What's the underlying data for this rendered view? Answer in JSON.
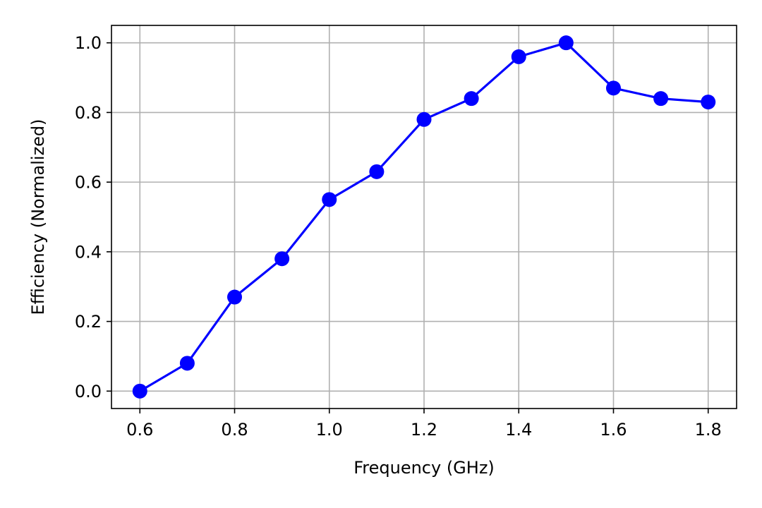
{
  "chart_data": {
    "type": "line",
    "title": "",
    "xlabel": "Frequency (GHz)",
    "ylabel": "Efficiency (Normalized)",
    "x": [
      0.6,
      0.7,
      0.8,
      0.9,
      1.0,
      1.1,
      1.2,
      1.3,
      1.4,
      1.5,
      1.6,
      1.7,
      1.8
    ],
    "series": [
      {
        "values": [
          0.0,
          0.08,
          0.27,
          0.38,
          0.55,
          0.63,
          0.78,
          0.84,
          0.96,
          1.0,
          0.87,
          0.84,
          0.83
        ],
        "color": "#0000ff",
        "marker": "circle"
      }
    ],
    "xlim": [
      0.54,
      1.86
    ],
    "ylim": [
      -0.05,
      1.05
    ],
    "xticks": [
      0.6,
      0.8,
      1.0,
      1.2,
      1.4,
      1.6,
      1.8
    ],
    "xtick_labels": [
      "0.6",
      "0.8",
      "1.0",
      "1.2",
      "1.4",
      "1.6",
      "1.8"
    ],
    "yticks": [
      0.0,
      0.2,
      0.4,
      0.6,
      0.8,
      1.0
    ],
    "ytick_labels": [
      "0.0",
      "0.2",
      "0.4",
      "0.6",
      "0.8",
      "1.0"
    ],
    "grid": true,
    "legend": "none"
  }
}
